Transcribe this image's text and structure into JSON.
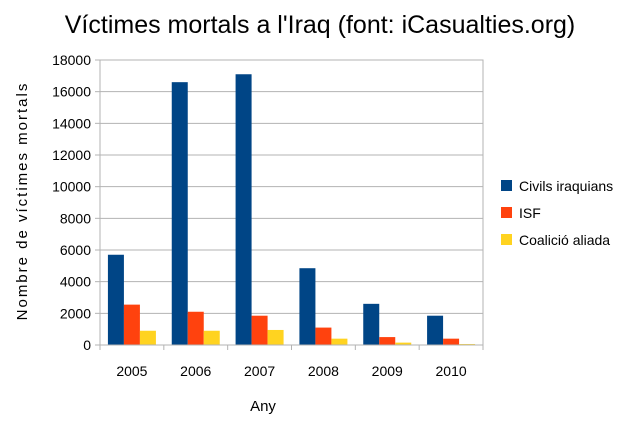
{
  "chart_data": {
    "type": "bar",
    "title": "Víctimes mortals a l'Iraq (font: iCasualties.org)",
    "xlabel": "Any",
    "ylabel": "Nombre de víctimes mortals",
    "categories": [
      "2005",
      "2006",
      "2007",
      "2008",
      "2009",
      "2010"
    ],
    "ylim": [
      0,
      18000
    ],
    "yticks": [
      0,
      2000,
      4000,
      6000,
      8000,
      10000,
      12000,
      14000,
      16000,
      18000
    ],
    "grid": true,
    "legend_position": "right",
    "series": [
      {
        "name": "Civils iraquians",
        "color": "#004586",
        "values": [
          5700,
          16600,
          17100,
          4850,
          2600,
          1850
        ]
      },
      {
        "name": "ISF",
        "color": "#ff420e",
        "values": [
          2550,
          2100,
          1850,
          1100,
          500,
          400
        ]
      },
      {
        "name": "Coalició aliada",
        "color": "#ffd320",
        "values": [
          900,
          900,
          950,
          400,
          150,
          60
        ]
      }
    ]
  }
}
